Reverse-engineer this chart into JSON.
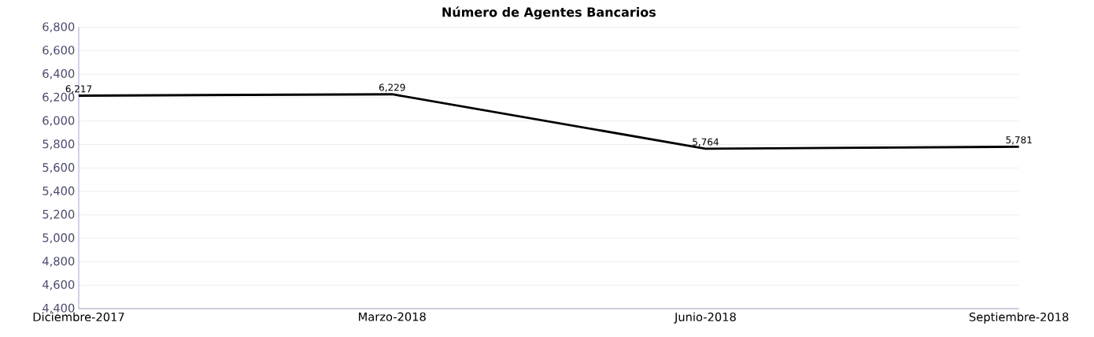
{
  "chart_data": {
    "type": "line",
    "title": "Número de Agentes Bancarios",
    "categories": [
      "Diciembre-2017",
      "Marzo-2018",
      "Junio-2018",
      "Septiembre-2018"
    ],
    "series": [
      {
        "color": "#000000",
        "values": [
          6217,
          6229,
          5764,
          5781
        ]
      }
    ],
    "value_labels": [
      "6,217",
      "6,229",
      "5,764",
      "5,781"
    ],
    "ylim": [
      4400,
      6800
    ],
    "yticks": [
      {
        "value": 4400,
        "label": "4,400"
      },
      {
        "value": 4600,
        "label": "4,600"
      },
      {
        "value": 4800,
        "label": "4,800"
      },
      {
        "value": 5000,
        "label": "5,000"
      },
      {
        "value": 5200,
        "label": "5,200"
      },
      {
        "value": 5400,
        "label": "5,400"
      },
      {
        "value": 5600,
        "label": "5,600"
      },
      {
        "value": 5800,
        "label": "5,800"
      },
      {
        "value": 6000,
        "label": "6,000"
      },
      {
        "value": 6200,
        "label": "6,200"
      },
      {
        "value": 6400,
        "label": "6,400"
      },
      {
        "value": 6600,
        "label": "6,600"
      },
      {
        "value": 6800,
        "label": "6,800"
      }
    ],
    "grid": "y",
    "marker": "none",
    "line_style": "solid"
  }
}
